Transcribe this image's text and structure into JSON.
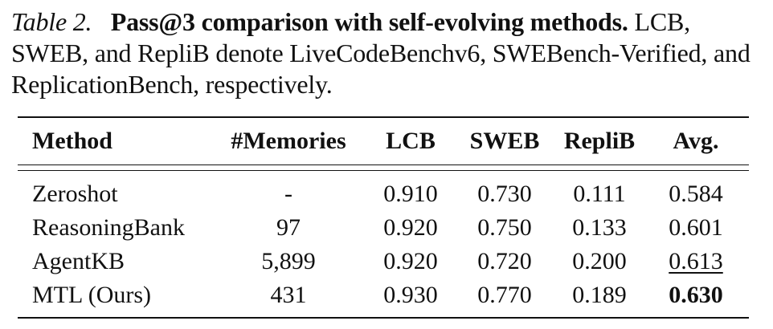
{
  "caption": {
    "label": "Table 2.",
    "title": "Pass@3 comparison with self-evolving methods.",
    "text": "LCB, SWEB, and RepliB denote LiveCodeBenchv6, SWEBench-Verified, and ReplicationBench, respectively."
  },
  "table": {
    "headers": {
      "method": "Method",
      "memories": "#Memories",
      "lcb": "LCB",
      "sweb": "SWEB",
      "replib": "RepliB",
      "avg": "Avg."
    },
    "rows": [
      {
        "method": "Zeroshot",
        "memories": "-",
        "lcb": "0.910",
        "sweb": "0.730",
        "replib": "0.111",
        "avg": "0.584"
      },
      {
        "method": "ReasoningBank",
        "memories": "97",
        "lcb": "0.920",
        "sweb": "0.750",
        "replib": "0.133",
        "avg": "0.601"
      },
      {
        "method": "AgentKB",
        "memories": "5,899",
        "lcb": "0.920",
        "sweb": "0.720",
        "replib": "0.200",
        "avg": "0.613"
      },
      {
        "method": "MTL (Ours)",
        "memories": "431",
        "lcb": "0.930",
        "sweb": "0.770",
        "replib": "0.189",
        "avg": "0.630"
      }
    ],
    "emphasis": {
      "best_avg": "0.630",
      "second_avg": "0.613"
    }
  }
}
